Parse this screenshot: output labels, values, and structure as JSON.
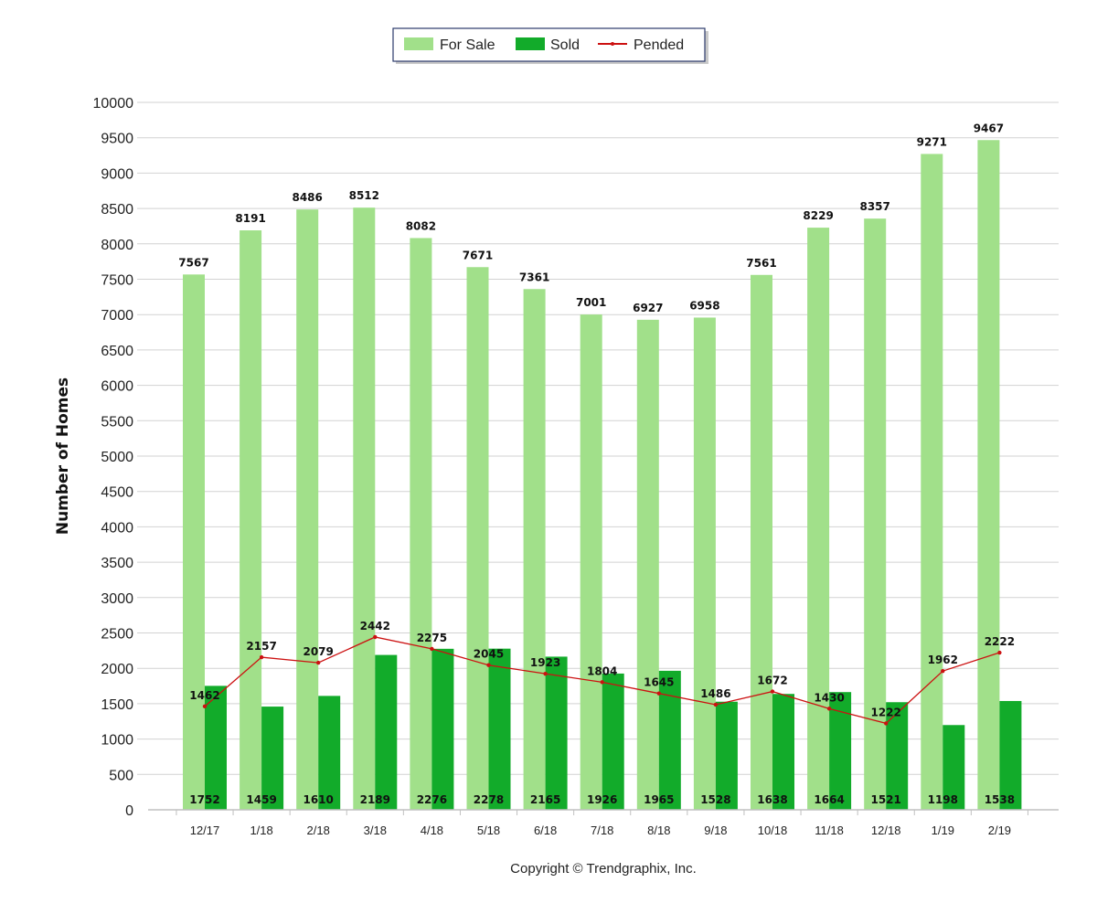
{
  "chart_data": {
    "type": "bar",
    "ylabel": "Number of Homes",
    "copyright": "Copyright © Trendgraphix, Inc.",
    "ylim": [
      0,
      10000
    ],
    "ytick_step": 500,
    "grid": true,
    "legend_position": "top-center",
    "categories": [
      "12/17",
      "1/18",
      "2/18",
      "3/18",
      "4/18",
      "5/18",
      "6/18",
      "7/18",
      "8/18",
      "9/18",
      "10/18",
      "11/18",
      "12/18",
      "1/19",
      "2/19"
    ],
    "series": [
      {
        "name": "For Sale",
        "type": "bar",
        "color": "#a1e08a",
        "values": [
          7567,
          8191,
          8486,
          8512,
          8082,
          7671,
          7361,
          7001,
          6927,
          6958,
          7561,
          8229,
          8357,
          9271,
          9467
        ]
      },
      {
        "name": "Sold",
        "type": "bar",
        "color": "#12ab2a",
        "values": [
          1752,
          1459,
          1610,
          2189,
          2276,
          2278,
          2165,
          1926,
          1965,
          1528,
          1638,
          1664,
          1521,
          1198,
          1538
        ]
      },
      {
        "name": "Pended",
        "type": "line",
        "color": "#cc1111",
        "values": [
          1462,
          2157,
          2079,
          2442,
          2275,
          2045,
          1923,
          1804,
          1645,
          1486,
          1672,
          1430,
          1222,
          1962,
          2222
        ]
      }
    ]
  }
}
